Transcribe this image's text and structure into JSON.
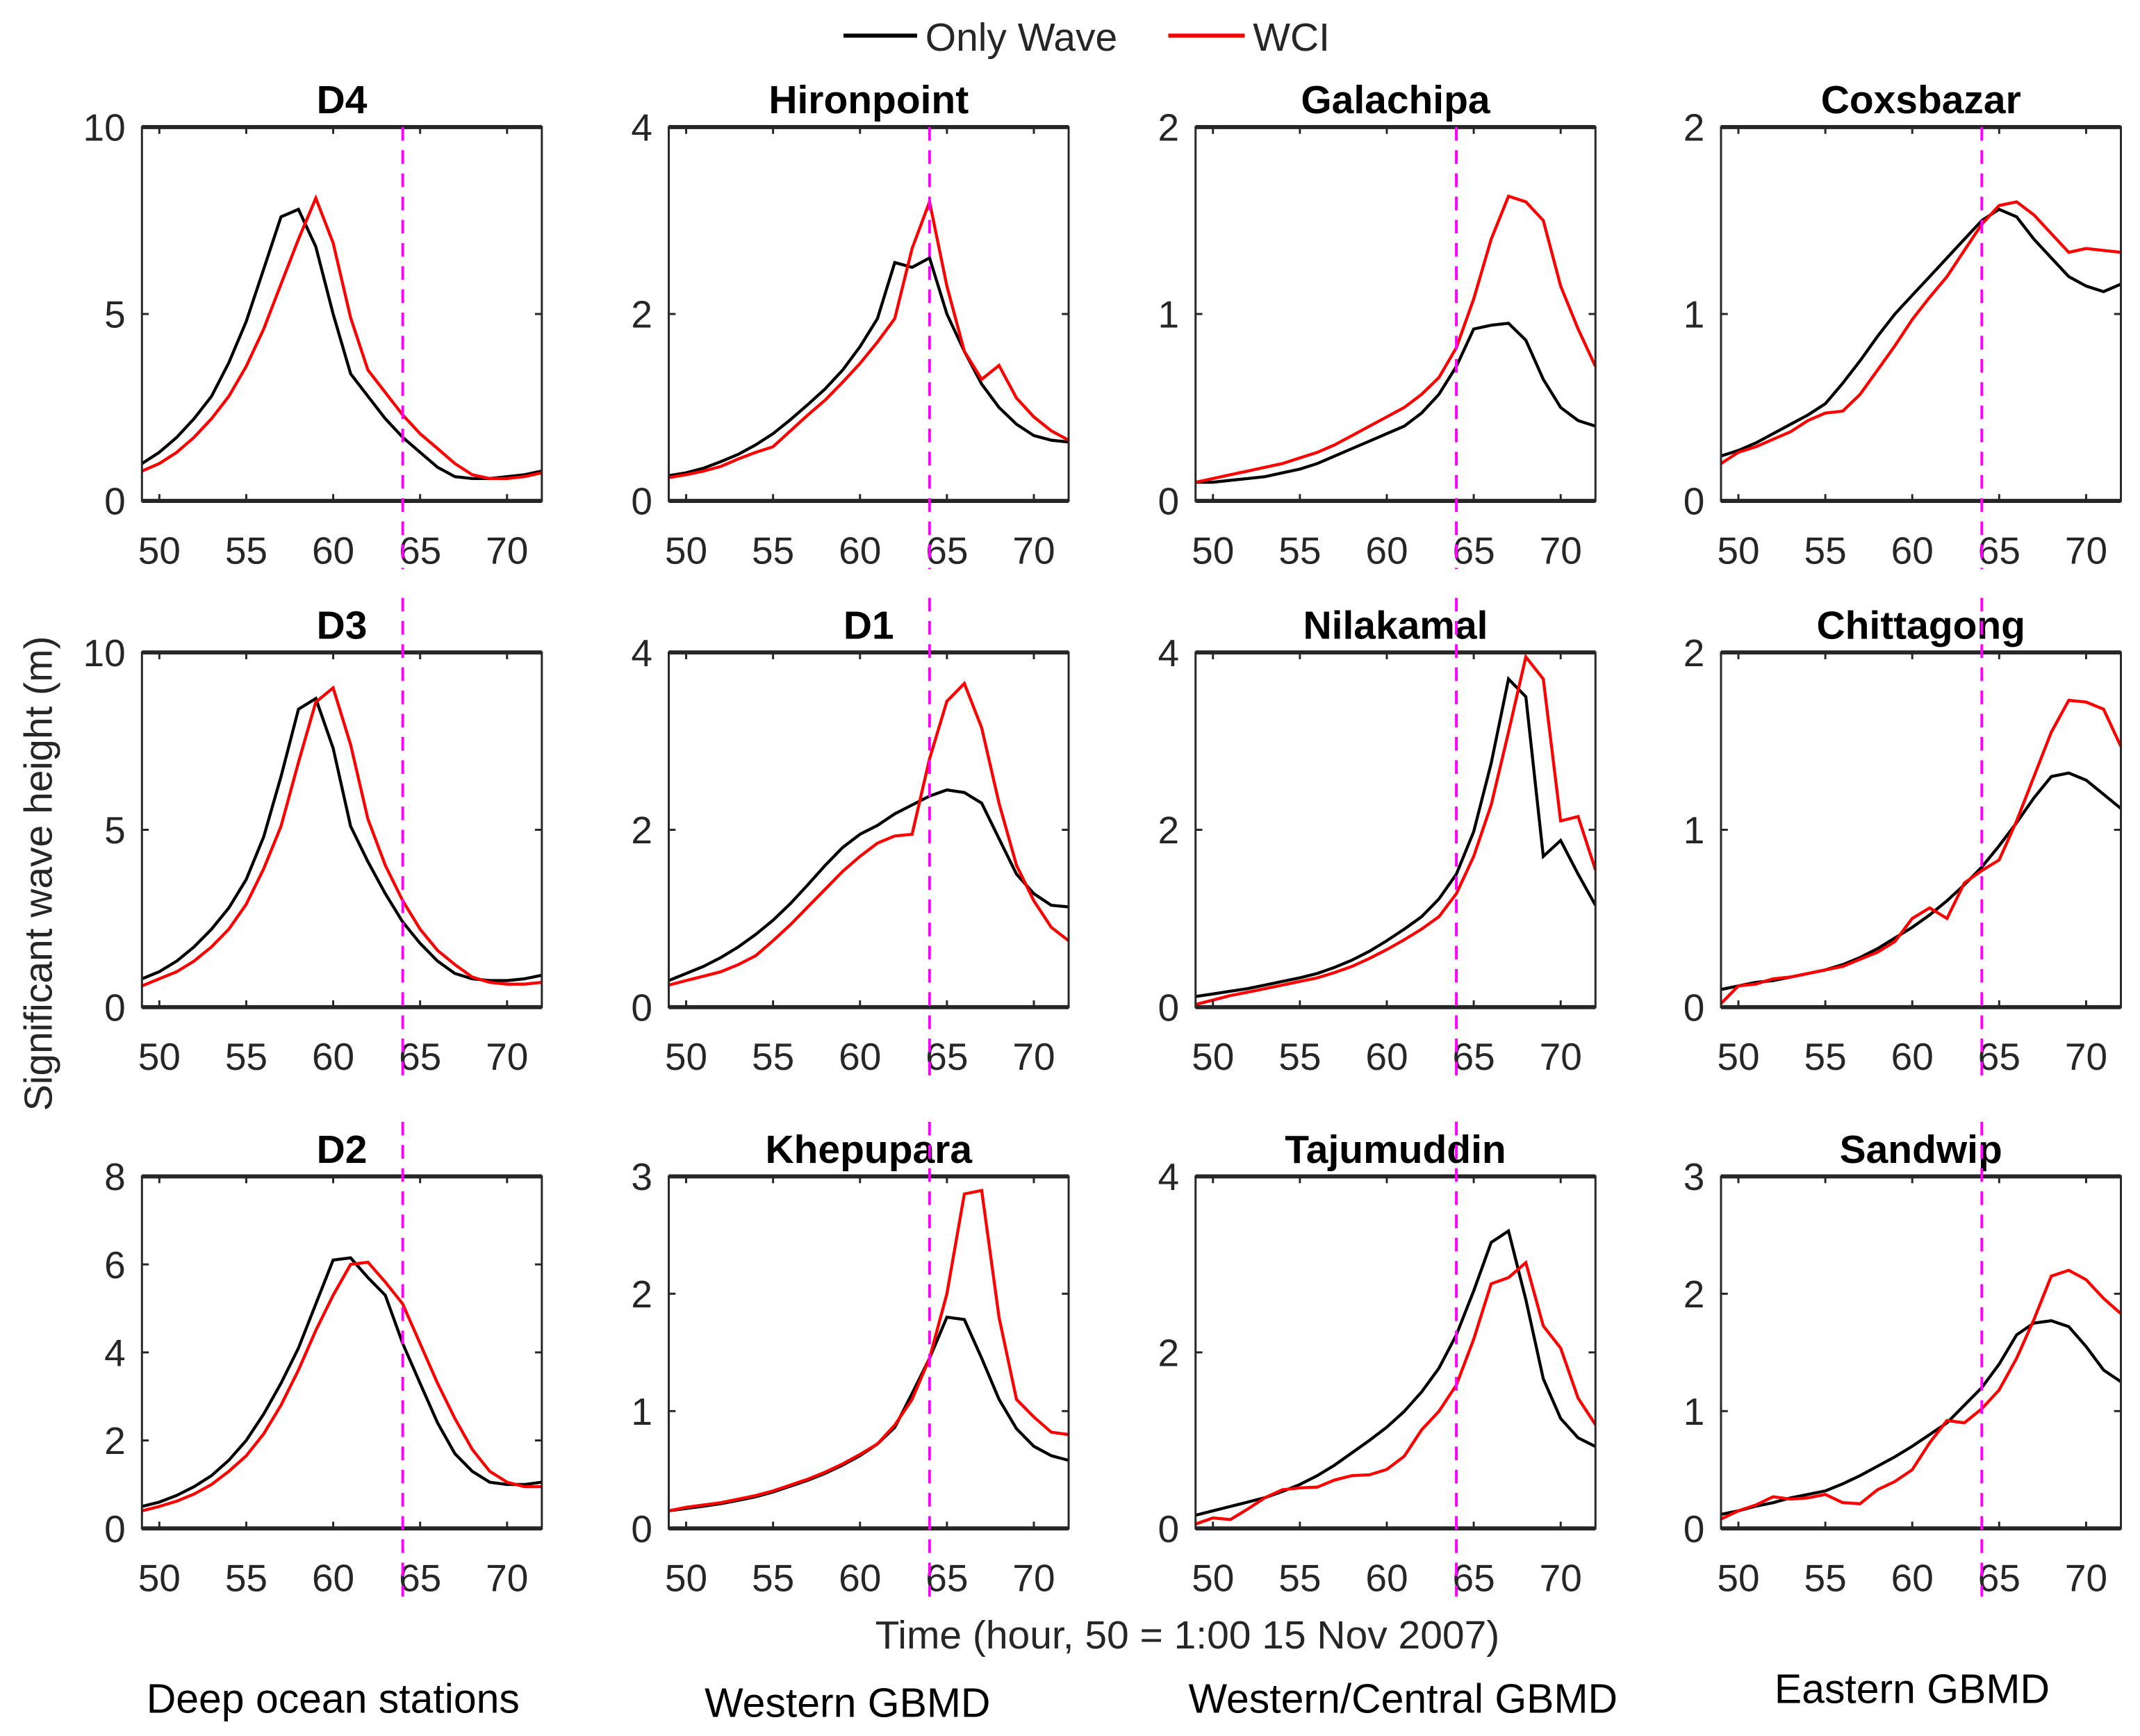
{
  "chart_data": {
    "type": "line",
    "legend": {
      "placement": "top-center",
      "entries": [
        {
          "name": "Only Wave",
          "color": "#000000"
        },
        {
          "name": "WCI",
          "color": "#ff0000"
        }
      ]
    },
    "xlabel": "Time (hour, 50 = 1:00 15 Nov 2007)",
    "ylabel": "Significant wave height (m)",
    "xlim": [
      49,
      72
    ],
    "xticks": [
      50,
      55,
      60,
      65,
      70
    ],
    "marker_line": {
      "x": 64,
      "color": "#ff00ff",
      "style": "dashed"
    },
    "x": [
      49,
      50,
      51,
      52,
      53,
      54,
      55,
      56,
      57,
      58,
      59,
      60,
      61,
      62,
      63,
      64,
      65,
      66,
      67,
      68,
      69,
      70,
      71,
      72
    ],
    "group_labels": [
      "Deep ocean stations",
      "Western GBMD",
      "Western/Central GBMD",
      "Eastern GBMD"
    ],
    "panels": [
      {
        "title": "D4",
        "ylim": [
          0,
          10
        ],
        "yticks": [
          0,
          5,
          10
        ],
        "series": [
          {
            "name": "Only Wave",
            "values": [
              1.0,
              1.3,
              1.7,
              2.2,
              2.8,
              3.7,
              4.8,
              6.2,
              7.6,
              7.8,
              6.8,
              5.0,
              3.4,
              2.8,
              2.2,
              1.7,
              1.3,
              0.9,
              0.65,
              0.6,
              0.6,
              0.65,
              0.7,
              0.8
            ]
          },
          {
            "name": "WCI",
            "values": [
              0.8,
              1.0,
              1.3,
              1.7,
              2.2,
              2.8,
              3.6,
              4.6,
              5.8,
              7.0,
              8.1,
              6.9,
              4.9,
              3.5,
              2.9,
              2.3,
              1.8,
              1.4,
              1.0,
              0.7,
              0.6,
              0.6,
              0.65,
              0.75
            ]
          }
        ]
      },
      {
        "title": "Hironpoint",
        "ylim": [
          0,
          4
        ],
        "yticks": [
          0,
          2,
          4
        ],
        "series": [
          {
            "name": "Only Wave",
            "values": [
              0.27,
              0.3,
              0.35,
              0.42,
              0.5,
              0.6,
              0.72,
              0.87,
              1.03,
              1.2,
              1.4,
              1.65,
              1.95,
              2.55,
              2.5,
              2.6,
              2.0,
              1.6,
              1.25,
              1.0,
              0.82,
              0.7,
              0.65,
              0.63
            ]
          },
          {
            "name": "WCI",
            "values": [
              0.25,
              0.28,
              0.32,
              0.37,
              0.45,
              0.52,
              0.58,
              0.75,
              0.92,
              1.08,
              1.27,
              1.47,
              1.7,
              1.95,
              2.7,
              3.2,
              2.3,
              1.6,
              1.3,
              1.45,
              1.1,
              0.9,
              0.75,
              0.65
            ]
          }
        ]
      },
      {
        "title": "Galachipa",
        "ylim": [
          0,
          2
        ],
        "yticks": [
          0,
          1,
          2
        ],
        "series": [
          {
            "name": "Only Wave",
            "values": [
              0.1,
              0.1,
              0.11,
              0.12,
              0.13,
              0.15,
              0.17,
              0.2,
              0.24,
              0.28,
              0.32,
              0.36,
              0.4,
              0.47,
              0.57,
              0.72,
              0.92,
              0.94,
              0.95,
              0.86,
              0.65,
              0.5,
              0.43,
              0.4
            ]
          },
          {
            "name": "WCI",
            "values": [
              0.1,
              0.12,
              0.14,
              0.16,
              0.18,
              0.2,
              0.23,
              0.26,
              0.3,
              0.35,
              0.4,
              0.45,
              0.5,
              0.57,
              0.66,
              0.82,
              1.08,
              1.4,
              1.63,
              1.6,
              1.5,
              1.15,
              0.92,
              0.72
            ]
          }
        ]
      },
      {
        "title": "Coxsbazar",
        "ylim": [
          0,
          2
        ],
        "yticks": [
          0,
          1,
          2
        ],
        "series": [
          {
            "name": "Only Wave",
            "values": [
              0.24,
              0.27,
              0.31,
              0.36,
              0.41,
              0.46,
              0.52,
              0.63,
              0.75,
              0.88,
              1.0,
              1.1,
              1.2,
              1.3,
              1.4,
              1.5,
              1.56,
              1.52,
              1.4,
              1.3,
              1.2,
              1.15,
              1.12,
              1.16
            ]
          },
          {
            "name": "WCI",
            "values": [
              0.2,
              0.26,
              0.29,
              0.33,
              0.37,
              0.43,
              0.47,
              0.48,
              0.57,
              0.7,
              0.83,
              0.97,
              1.09,
              1.2,
              1.34,
              1.48,
              1.58,
              1.6,
              1.53,
              1.43,
              1.33,
              1.35,
              1.34,
              1.33
            ]
          }
        ]
      },
      {
        "title": "D3",
        "ylim": [
          0,
          10
        ],
        "yticks": [
          0,
          5,
          10
        ],
        "series": [
          {
            "name": "Only Wave",
            "values": [
              0.8,
              1.0,
              1.3,
              1.7,
              2.2,
              2.8,
              3.6,
              4.8,
              6.5,
              8.4,
              8.7,
              7.3,
              5.1,
              4.1,
              3.2,
              2.4,
              1.8,
              1.3,
              0.95,
              0.8,
              0.75,
              0.75,
              0.8,
              0.9
            ]
          },
          {
            "name": "WCI",
            "values": [
              0.6,
              0.8,
              1.0,
              1.3,
              1.7,
              2.2,
              2.9,
              3.9,
              5.1,
              6.9,
              8.6,
              9.0,
              7.4,
              5.3,
              4.0,
              3.0,
              2.2,
              1.6,
              1.2,
              0.85,
              0.7,
              0.65,
              0.65,
              0.7
            ]
          }
        ]
      },
      {
        "title": "D1",
        "ylim": [
          0,
          4
        ],
        "yticks": [
          0,
          2,
          4
        ],
        "series": [
          {
            "name": "Only Wave",
            "values": [
              0.3,
              0.38,
              0.46,
              0.56,
              0.68,
              0.82,
              0.98,
              1.17,
              1.38,
              1.6,
              1.8,
              1.95,
              2.05,
              2.18,
              2.28,
              2.38,
              2.45,
              2.42,
              2.3,
              1.9,
              1.5,
              1.28,
              1.15,
              1.13
            ]
          },
          {
            "name": "WCI",
            "values": [
              0.25,
              0.3,
              0.35,
              0.4,
              0.48,
              0.58,
              0.75,
              0.93,
              1.13,
              1.33,
              1.53,
              1.7,
              1.85,
              1.93,
              1.95,
              2.8,
              3.45,
              3.65,
              3.15,
              2.3,
              1.6,
              1.2,
              0.9,
              0.75
            ]
          }
        ]
      },
      {
        "title": "Nilakamal",
        "ylim": [
          0,
          4
        ],
        "yticks": [
          0,
          2,
          4
        ],
        "series": [
          {
            "name": "Only Wave",
            "values": [
              0.12,
              0.15,
              0.18,
              0.21,
              0.25,
              0.29,
              0.33,
              0.38,
              0.45,
              0.53,
              0.63,
              0.75,
              0.88,
              1.02,
              1.22,
              1.5,
              1.98,
              2.75,
              3.7,
              3.5,
              1.7,
              1.88,
              1.5,
              1.15
            ]
          },
          {
            "name": "WCI",
            "values": [
              0.03,
              0.08,
              0.13,
              0.17,
              0.21,
              0.25,
              0.29,
              0.33,
              0.39,
              0.46,
              0.55,
              0.65,
              0.76,
              0.88,
              1.02,
              1.28,
              1.7,
              2.28,
              3.1,
              3.95,
              3.7,
              2.1,
              2.15,
              1.55
            ]
          }
        ]
      },
      {
        "title": "Chittagong",
        "ylim": [
          0,
          2
        ],
        "yticks": [
          0,
          1,
          2
        ],
        "series": [
          {
            "name": "Only Wave",
            "values": [
              0.1,
              0.12,
              0.14,
              0.15,
              0.17,
              0.19,
              0.21,
              0.24,
              0.28,
              0.33,
              0.39,
              0.45,
              0.52,
              0.6,
              0.69,
              0.79,
              0.91,
              1.04,
              1.18,
              1.3,
              1.32,
              1.28,
              1.2,
              1.12
            ]
          },
          {
            "name": "WCI",
            "values": [
              0.02,
              0.12,
              0.13,
              0.16,
              0.17,
              0.19,
              0.21,
              0.23,
              0.27,
              0.31,
              0.37,
              0.5,
              0.56,
              0.5,
              0.7,
              0.77,
              0.83,
              1.05,
              1.3,
              1.55,
              1.73,
              1.72,
              1.68,
              1.47
            ]
          }
        ]
      },
      {
        "title": "D2",
        "ylim": [
          0,
          8
        ],
        "yticks": [
          0,
          2,
          4,
          6,
          8
        ],
        "series": [
          {
            "name": "Only Wave",
            "values": [
              0.5,
              0.6,
              0.75,
              0.95,
              1.2,
              1.55,
              2.0,
              2.6,
              3.3,
              4.1,
              5.1,
              6.1,
              6.15,
              5.7,
              5.3,
              4.2,
              3.3,
              2.4,
              1.7,
              1.3,
              1.05,
              1.0,
              1.0,
              1.05
            ]
          },
          {
            "name": "WCI",
            "values": [
              0.4,
              0.5,
              0.62,
              0.78,
              1.0,
              1.3,
              1.65,
              2.15,
              2.8,
              3.6,
              4.5,
              5.3,
              6.0,
              6.05,
              5.6,
              5.1,
              4.2,
              3.3,
              2.5,
              1.8,
              1.3,
              1.05,
              0.95,
              0.95
            ]
          }
        ]
      },
      {
        "title": "Khepupara",
        "ylim": [
          0,
          3
        ],
        "yticks": [
          0,
          1,
          2,
          3
        ],
        "series": [
          {
            "name": "Only Wave",
            "values": [
              0.15,
              0.17,
              0.19,
              0.21,
              0.24,
              0.27,
              0.31,
              0.36,
              0.41,
              0.47,
              0.54,
              0.62,
              0.72,
              0.86,
              1.15,
              1.45,
              1.8,
              1.78,
              1.45,
              1.1,
              0.85,
              0.7,
              0.62,
              0.58
            ]
          },
          {
            "name": "WCI",
            "values": [
              0.15,
              0.18,
              0.2,
              0.22,
              0.25,
              0.28,
              0.32,
              0.37,
              0.42,
              0.48,
              0.55,
              0.63,
              0.72,
              0.88,
              1.1,
              1.45,
              2.0,
              2.85,
              2.88,
              1.8,
              1.1,
              0.95,
              0.82,
              0.8
            ]
          }
        ]
      },
      {
        "title": "Tajumuddin",
        "ylim": [
          0,
          4
        ],
        "yticks": [
          0,
          2,
          4
        ],
        "series": [
          {
            "name": "Only Wave",
            "values": [
              0.15,
              0.2,
              0.25,
              0.3,
              0.35,
              0.42,
              0.5,
              0.6,
              0.72,
              0.86,
              1.0,
              1.15,
              1.33,
              1.55,
              1.82,
              2.2,
              2.7,
              3.25,
              3.38,
              2.6,
              1.7,
              1.25,
              1.03,
              0.93
            ]
          },
          {
            "name": "WCI",
            "values": [
              0.05,
              0.12,
              0.1,
              0.22,
              0.35,
              0.44,
              0.46,
              0.47,
              0.55,
              0.6,
              0.61,
              0.67,
              0.82,
              1.12,
              1.33,
              1.63,
              2.15,
              2.78,
              2.85,
              3.02,
              2.3,
              2.05,
              1.48,
              1.18
            ]
          }
        ]
      },
      {
        "title": "Sandwip",
        "ylim": [
          0,
          3
        ],
        "yticks": [
          0,
          1,
          2,
          3
        ],
        "series": [
          {
            "name": "Only Wave",
            "values": [
              0.12,
              0.15,
              0.19,
              0.22,
              0.26,
              0.29,
              0.32,
              0.38,
              0.45,
              0.53,
              0.61,
              0.7,
              0.8,
              0.9,
              1.05,
              1.2,
              1.4,
              1.65,
              1.75,
              1.77,
              1.72,
              1.55,
              1.35,
              1.25
            ]
          },
          {
            "name": "WCI",
            "values": [
              0.08,
              0.15,
              0.2,
              0.27,
              0.25,
              0.26,
              0.29,
              0.22,
              0.21,
              0.33,
              0.4,
              0.5,
              0.73,
              0.92,
              0.9,
              1.02,
              1.18,
              1.45,
              1.78,
              2.15,
              2.2,
              2.12,
              1.96,
              1.83
            ]
          }
        ]
      }
    ]
  }
}
